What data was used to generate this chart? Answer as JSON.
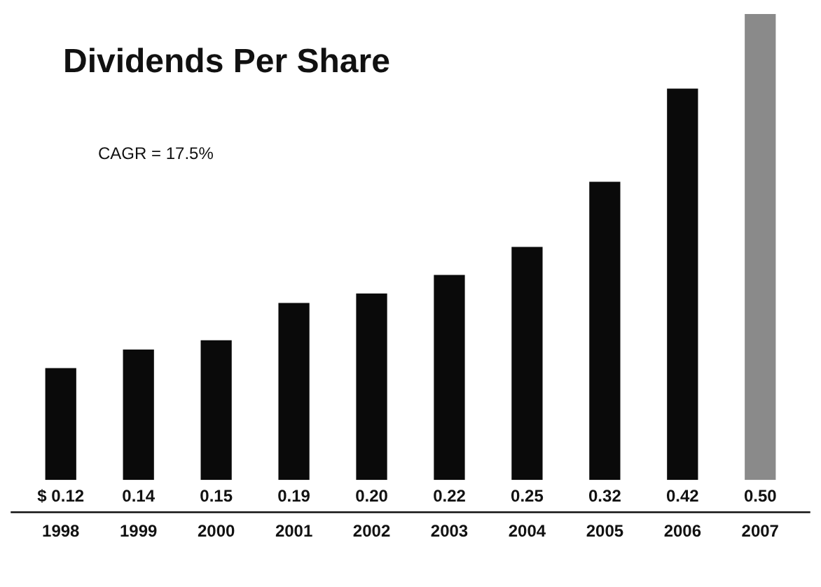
{
  "chart_data": {
    "type": "bar",
    "title": "Dividends Per Share",
    "annotations": [
      "CAGR = 17.5%"
    ],
    "categories": [
      "1998",
      "1999",
      "2000",
      "2001",
      "2002",
      "2003",
      "2004",
      "2005",
      "2006",
      "2007"
    ],
    "values": [
      0.12,
      0.14,
      0.15,
      0.19,
      0.2,
      0.22,
      0.25,
      0.32,
      0.42,
      0.5
    ],
    "colors": [
      "#0a0a0a",
      "#0a0a0a",
      "#0a0a0a",
      "#0a0a0a",
      "#0a0a0a",
      "#0a0a0a",
      "#0a0a0a",
      "#0a0a0a",
      "#0a0a0a",
      "#8a8a8a"
    ],
    "value_labels": [
      "$ 0.12",
      "0.14",
      "0.15",
      "0.19",
      "0.20",
      "0.22",
      "0.25",
      "0.32",
      "0.42",
      "0.50"
    ],
    "grid": false,
    "legend": false
  }
}
